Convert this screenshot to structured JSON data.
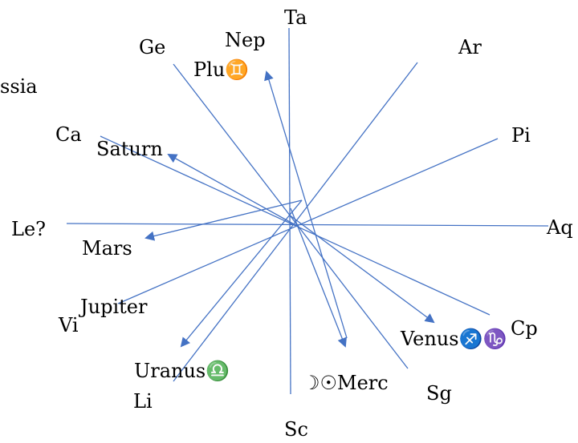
{
  "colors": {
    "line": "#4472c4",
    "text": "#000000",
    "background": "#ffffff"
  },
  "signs": {
    "ta": "Ta",
    "ar": "Ar",
    "pi": "Pi",
    "aq": "Aq",
    "cp": "Cp",
    "sg": "Sg",
    "sc": "Sc",
    "li": "Li",
    "vi": "Vi",
    "le": "Le?",
    "ca": "Ca",
    "ge": "Ge"
  },
  "planets": {
    "nep": "Nep",
    "plu": "Plu♊",
    "saturn": "Saturn",
    "mars": "Mars",
    "jupiter": "Jupiter",
    "uranus": "Uranus♎",
    "moon_sun_merc": "☽☉Merc",
    "venus": "Venus♐♑"
  },
  "other": {
    "ssia": "ssia"
  }
}
